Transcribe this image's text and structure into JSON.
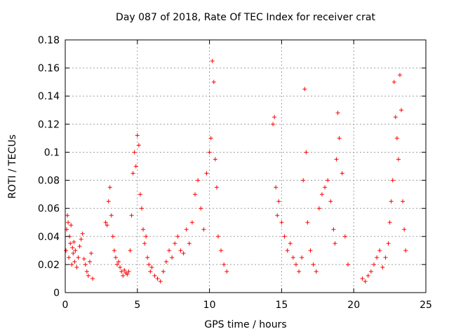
{
  "chart_data": {
    "type": "scatter",
    "title": "Day 087 of 2018, Rate Of TEC Index for receiver crat",
    "xlabel": "GPS time / hours",
    "ylabel": "ROTI / TECUs",
    "xlim": [
      0,
      25
    ],
    "ylim": [
      0,
      0.18
    ],
    "xticks": [
      0,
      5,
      10,
      15,
      20,
      25
    ],
    "xtick_labels": [
      "0",
      "5",
      "10",
      "15",
      "20",
      "25"
    ],
    "yticks": [
      0,
      0.02,
      0.04,
      0.06,
      0.08,
      0.1,
      0.12,
      0.14,
      0.16,
      0.18
    ],
    "ytick_labels": [
      "0",
      "0.02",
      "0.04",
      "0.06",
      "0.08",
      "0.1",
      "0.12",
      "0.14",
      "0.16",
      "0.18"
    ],
    "grid": true,
    "marker": "+",
    "color": "#ff0000",
    "series": [
      {
        "name": "ROTI",
        "x": [
          0.05,
          0.1,
          0.15,
          0.2,
          0.25,
          0.3,
          0.35,
          0.4,
          0.45,
          0.5,
          0.55,
          0.6,
          0.65,
          0.7,
          0.8,
          0.9,
          1.0,
          1.1,
          1.2,
          1.3,
          1.4,
          1.5,
          1.6,
          1.7,
          1.8,
          1.9,
          2.8,
          2.9,
          3.0,
          3.1,
          3.2,
          3.3,
          3.4,
          3.5,
          3.6,
          3.7,
          3.8,
          3.9,
          4.0,
          4.1,
          4.2,
          4.3,
          4.4,
          4.5,
          4.6,
          4.7,
          4.8,
          4.9,
          5.0,
          5.1,
          5.2,
          5.3,
          5.4,
          5.5,
          5.6,
          5.7,
          5.8,
          5.9,
          6.0,
          6.2,
          6.4,
          6.6,
          6.8,
          7.0,
          7.2,
          7.4,
          7.6,
          7.8,
          8.0,
          8.2,
          8.4,
          8.6,
          8.8,
          9.0,
          9.2,
          9.4,
          9.6,
          9.8,
          10.0,
          10.1,
          10.2,
          10.3,
          10.4,
          10.5,
          10.6,
          10.8,
          11.0,
          11.2,
          14.4,
          14.5,
          14.6,
          14.7,
          14.8,
          15.0,
          15.2,
          15.4,
          15.6,
          15.8,
          16.0,
          16.2,
          16.4,
          16.5,
          16.6,
          16.7,
          16.8,
          17.0,
          17.2,
          17.4,
          17.6,
          17.8,
          18.0,
          18.2,
          18.4,
          18.6,
          18.7,
          18.8,
          18.9,
          19.0,
          19.2,
          19.4,
          19.6,
          20.6,
          20.8,
          21.0,
          21.2,
          21.4,
          21.6,
          21.8,
          22.0,
          22.2,
          22.4,
          22.5,
          22.6,
          22.7,
          22.8,
          22.9,
          23.0,
          23.1,
          23.2,
          23.3,
          23.4,
          23.5,
          23.6
        ],
        "y": [
          0.03,
          0.045,
          0.055,
          0.05,
          0.025,
          0.04,
          0.035,
          0.048,
          0.02,
          0.032,
          0.028,
          0.036,
          0.022,
          0.03,
          0.018,
          0.025,
          0.033,
          0.038,
          0.042,
          0.024,
          0.02,
          0.015,
          0.012,
          0.022,
          0.028,
          0.01,
          0.05,
          0.048,
          0.065,
          0.075,
          0.055,
          0.04,
          0.03,
          0.025,
          0.02,
          0.022,
          0.018,
          0.015,
          0.012,
          0.016,
          0.014,
          0.013,
          0.015,
          0.03,
          0.055,
          0.085,
          0.1,
          0.09,
          0.112,
          0.105,
          0.07,
          0.06,
          0.045,
          0.035,
          0.04,
          0.025,
          0.02,
          0.015,
          0.018,
          0.012,
          0.01,
          0.008,
          0.015,
          0.022,
          0.03,
          0.025,
          0.035,
          0.04,
          0.03,
          0.028,
          0.045,
          0.035,
          0.05,
          0.07,
          0.08,
          0.06,
          0.045,
          0.085,
          0.1,
          0.11,
          0.165,
          0.15,
          0.095,
          0.075,
          0.04,
          0.03,
          0.02,
          0.015,
          0.12,
          0.125,
          0.075,
          0.055,
          0.065,
          0.05,
          0.04,
          0.03,
          0.035,
          0.025,
          0.02,
          0.015,
          0.025,
          0.08,
          0.145,
          0.1,
          0.05,
          0.03,
          0.02,
          0.015,
          0.06,
          0.07,
          0.075,
          0.08,
          0.065,
          0.045,
          0.035,
          0.095,
          0.128,
          0.11,
          0.085,
          0.04,
          0.02,
          0.01,
          0.008,
          0.012,
          0.015,
          0.02,
          0.025,
          0.03,
          0.018,
          0.025,
          0.035,
          0.05,
          0.065,
          0.08,
          0.15,
          0.125,
          0.11,
          0.095,
          0.155,
          0.13,
          0.065,
          0.045,
          0.03
        ]
      }
    ]
  }
}
